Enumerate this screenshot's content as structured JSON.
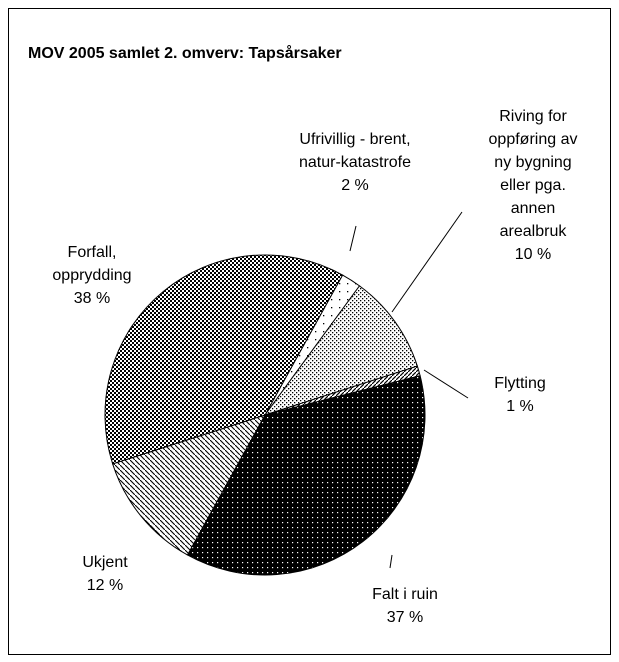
{
  "chart_data": {
    "type": "pie",
    "title": "MOV 2005 samlet 2. omverv: Tapsårsaker",
    "categories": [
      "Ufrivillig - brent, natur-katastrofe",
      "Riving for oppføring av ny bygning eller pga. annen arealbruk",
      "Flytting",
      "Falt i ruin",
      "Ukjent",
      "Forfall, opprydding"
    ],
    "values": [
      2,
      10,
      1,
      37,
      12,
      38
    ],
    "value_labels": [
      "2 %",
      "10 %",
      "1 %",
      "37 %",
      "12 %",
      "38 %"
    ]
  }
}
